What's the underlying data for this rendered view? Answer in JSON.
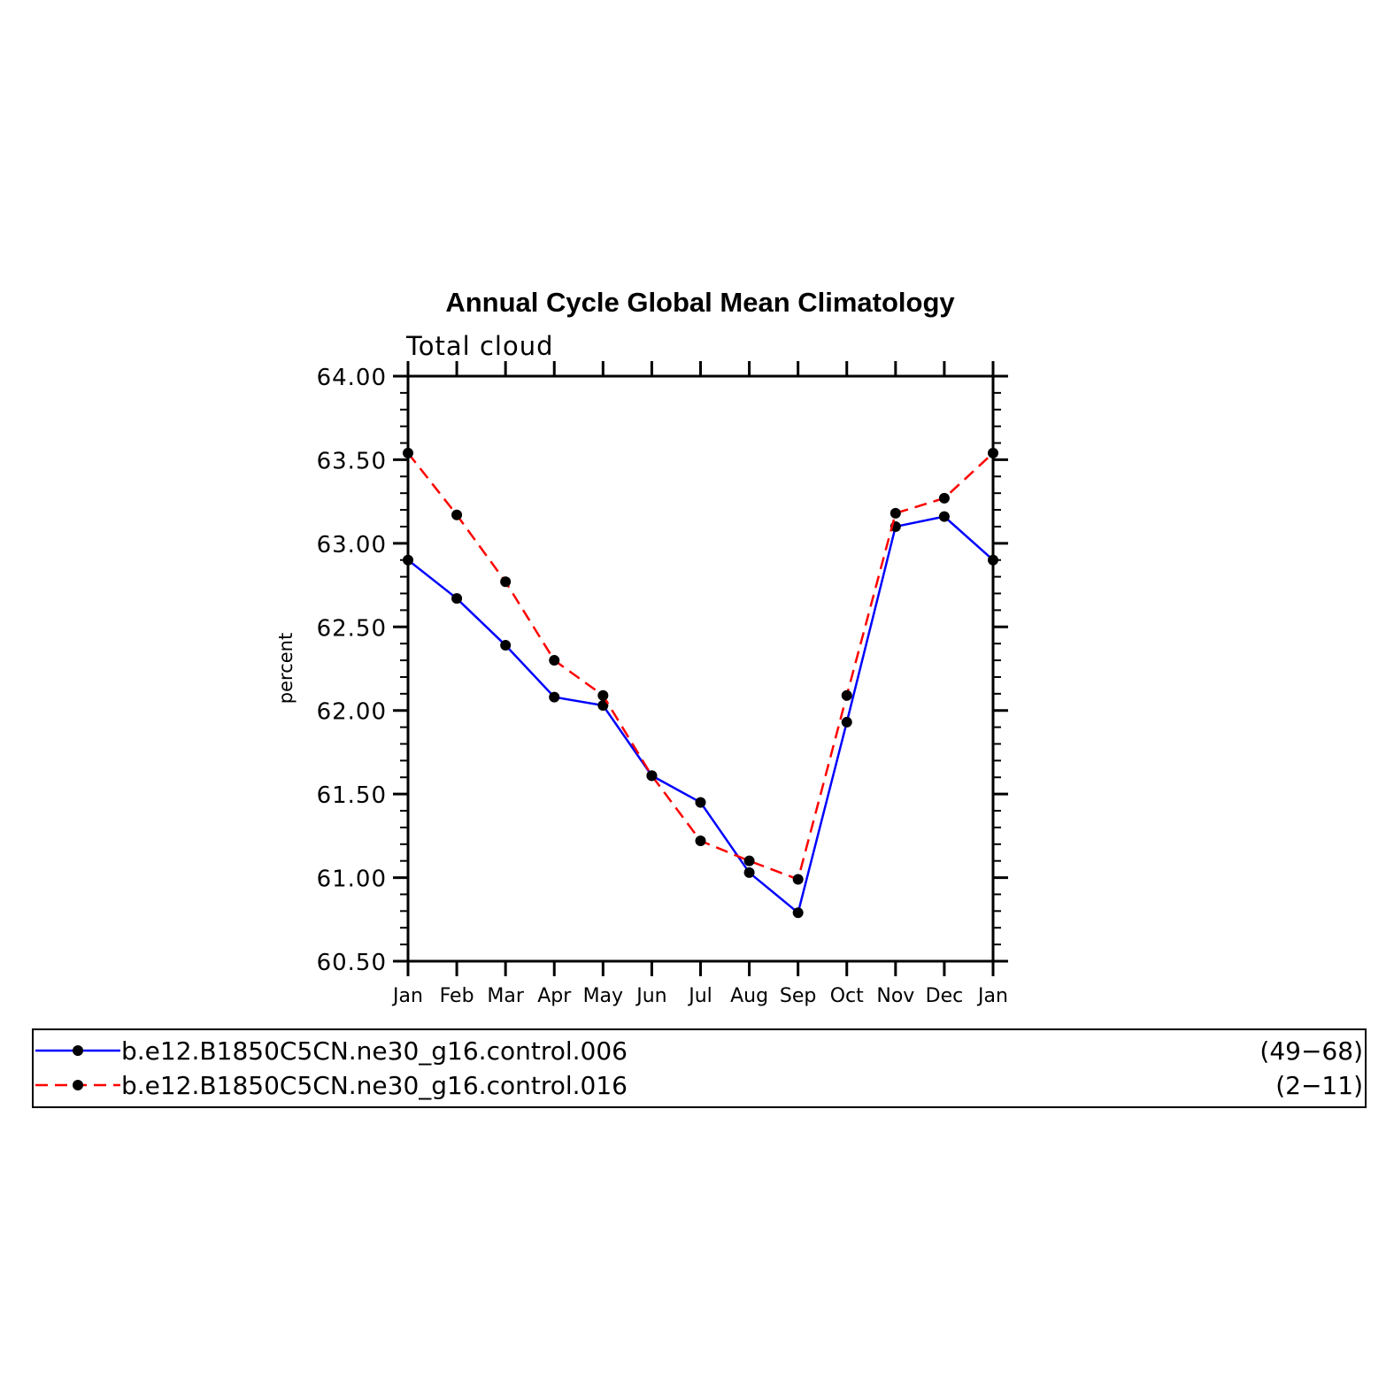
{
  "chart_data": {
    "type": "line",
    "title": "Annual Cycle Global Mean Climatology",
    "subtitle": "Total cloud",
    "xlabel": "",
    "ylabel": "percent",
    "categories": [
      "Jan",
      "Feb",
      "Mar",
      "Apr",
      "May",
      "Jun",
      "Jul",
      "Aug",
      "Sep",
      "Oct",
      "Nov",
      "Dec",
      "Jan"
    ],
    "ylim": [
      60.5,
      64.0
    ],
    "yticks": [
      "64.00",
      "63.50",
      "63.00",
      "62.50",
      "62.00",
      "61.50",
      "61.00",
      "60.50"
    ],
    "grid": false,
    "legend_position": "bottom",
    "series": [
      {
        "name": "b.e12.B1850C5CN.ne30_g16.control.006",
        "years": "(49−68)",
        "color": "#0000ff",
        "dash": "solid",
        "values": [
          62.9,
          62.67,
          62.39,
          62.08,
          62.03,
          61.61,
          61.45,
          61.03,
          60.79,
          61.93,
          63.1,
          63.16,
          62.9
        ]
      },
      {
        "name": "b.e12.B1850C5CN.ne30_g16.control.016",
        "years": "(2−11)",
        "color": "#ff0000",
        "dash": "dashed",
        "values": [
          63.54,
          63.17,
          62.77,
          62.3,
          62.09,
          61.61,
          61.22,
          61.1,
          60.99,
          62.09,
          63.18,
          63.27,
          63.54
        ]
      }
    ]
  }
}
